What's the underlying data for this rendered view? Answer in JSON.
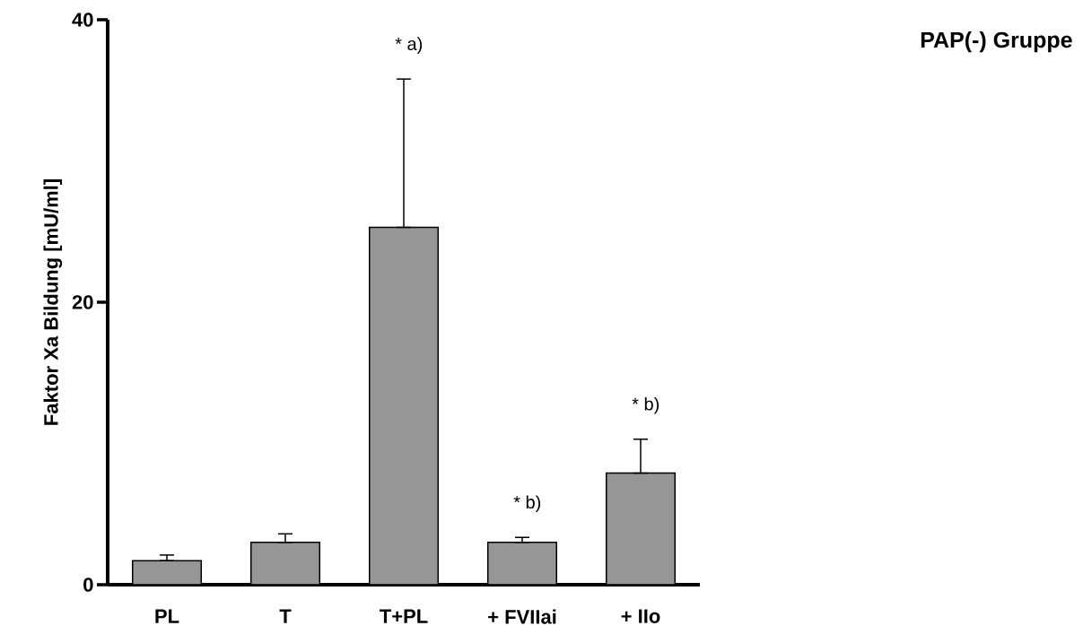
{
  "chart_data": {
    "type": "bar",
    "title": "PAP(-) Gruppe",
    "ylabel": "Faktor Xa Bildung [mU/ml]",
    "categories": [
      "PL",
      "T",
      "T+PL",
      "+ FVIIai",
      "+  IIo"
    ],
    "values": [
      1.7,
      3.0,
      25.3,
      3.0,
      7.9
    ],
    "errors": [
      [
        1.7,
        2.1
      ],
      [
        3.0,
        3.6
      ],
      [
        25.3,
        35.8
      ],
      [
        3.0,
        3.35
      ],
      [
        7.9,
        10.3
      ]
    ],
    "color": "#969696",
    "ylim": [
      0,
      40
    ],
    "yticks": [
      0,
      20,
      40
    ],
    "annotations": [
      {
        "text": "* a)",
        "x": "T+PL",
        "y": 35.8
      },
      {
        "text": "* b)",
        "x": "+ FVIIai",
        "y": 3.35
      },
      {
        "text": "* b)",
        "x": "+  IIo",
        "y": 10.3
      }
    ]
  }
}
